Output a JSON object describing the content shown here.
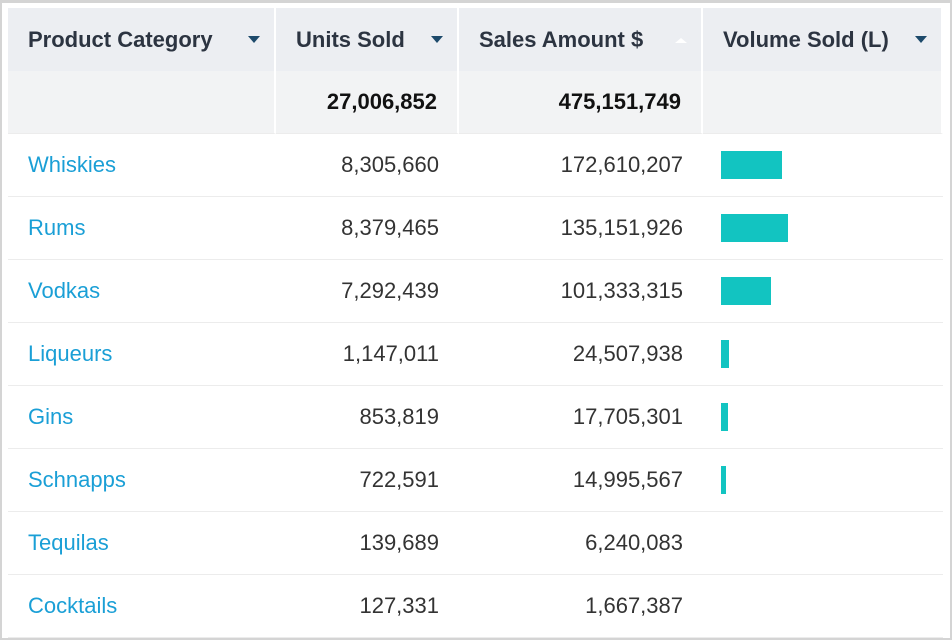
{
  "headers": [
    "Product Category",
    "Units Sold",
    "Sales Amount $",
    "Volume Sold (L)"
  ],
  "totals": {
    "units": "27,006,852",
    "sales": "475,151,749"
  },
  "bar_color": "#12c4c1",
  "rows": [
    {
      "category": "Whiskies",
      "units": "8,305,660",
      "sales": "172,610,207",
      "volume_fraction": 0.29
    },
    {
      "category": "Rums",
      "units": "8,379,465",
      "sales": "135,151,926",
      "volume_fraction": 0.32
    },
    {
      "category": "Vodkas",
      "units": "7,292,439",
      "sales": "101,333,315",
      "volume_fraction": 0.24
    },
    {
      "category": "Liqueurs",
      "units": "1,147,011",
      "sales": "24,507,938",
      "volume_fraction": 0.04
    },
    {
      "category": "Gins",
      "units": "853,819",
      "sales": "17,705,301",
      "volume_fraction": 0.033
    },
    {
      "category": "Schnapps",
      "units": "722,591",
      "sales": "14,995,567",
      "volume_fraction": 0.024
    },
    {
      "category": "Tequilas",
      "units": "139,689",
      "sales": "6,240,083",
      "volume_fraction": 0
    },
    {
      "category": "Cocktails",
      "units": "127,331",
      "sales": "1,667,387",
      "volume_fraction": 0
    }
  ]
}
